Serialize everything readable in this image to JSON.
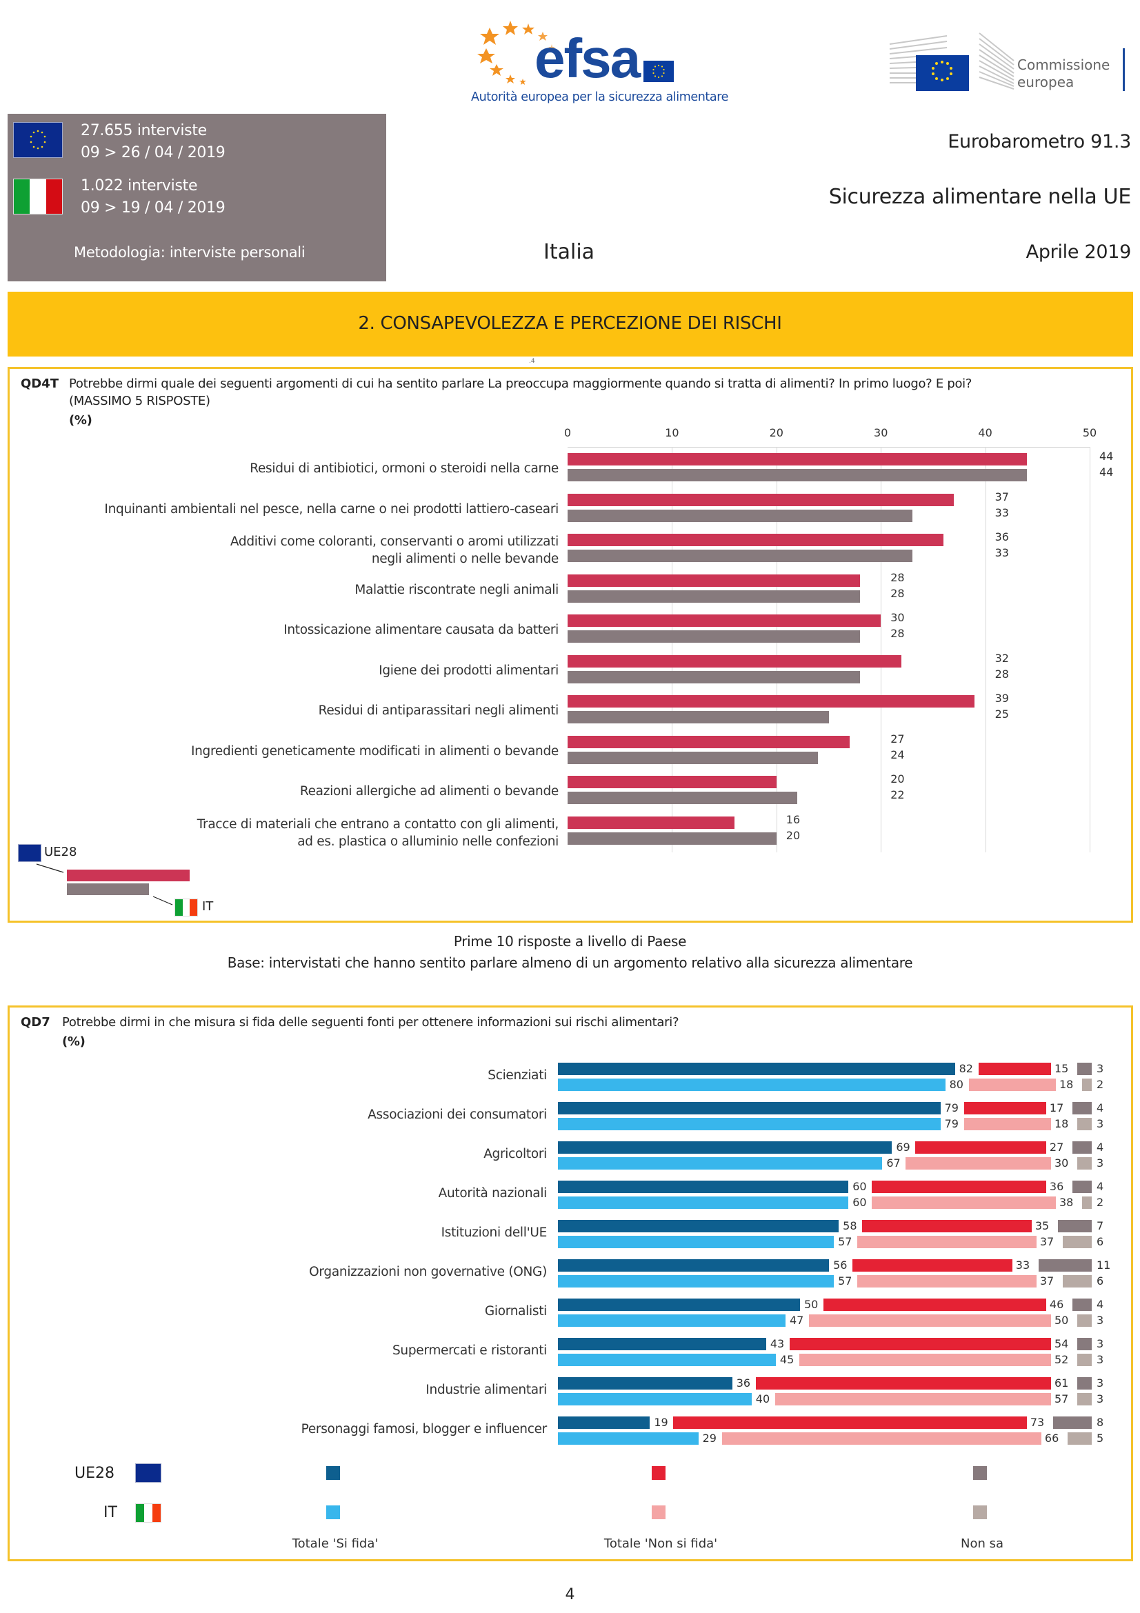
{
  "header": {
    "efsa_wordmark": "efsa",
    "efsa_tagline": "Autorità europea per la sicurezza alimentare",
    "ec_name_line1": "Commissione",
    "ec_name_line2": "europea",
    "eu_interviews": "27.655 interviste",
    "eu_dates": "09 > 26 / 04 / 2019",
    "it_interviews": "1.022 interviste",
    "it_dates": "09 > 19 / 04 / 2019",
    "methodology": "Metodologia: interviste personali",
    "survey": "Eurobarometro 91.3",
    "report_title": "Sicurezza alimentare nella UE",
    "country": "Italia",
    "date": "Aprile  2019"
  },
  "section": {
    "title": "2. CONSAPEVOLEZZA E PERCEZIONE DEI RISCHI",
    "marker": ".4"
  },
  "qd4t": {
    "code": "QD4T",
    "question_line1": "Potrebbe dirmi quale dei seguenti argomenti di cui ha sentito parlare La preoccupa maggiormente quando si tratta di alimenti? In primo luogo? E poi?",
    "question_line2": "(MASSIMO 5 RISPOSTE)",
    "unit": "(%)",
    "legend_eu": "UE28",
    "legend_it": "IT",
    "footnote1": "Prime 10 risposte a livello di Paese",
    "footnote2": "Base: intervistati che hanno sentito parlare almeno di un argomento relativo alla sicurezza alimentare"
  },
  "qd7": {
    "code": "QD7",
    "question": "Potrebbe dirmi in che misura si fida delle seguenti fonti per ottenere informazioni sui rischi alimentari?",
    "unit": "(%)",
    "legend_eu": "UE28",
    "legend_it": "IT",
    "legend_trust": "Totale 'Si fida'",
    "legend_distrust": "Totale 'Non si fida'",
    "legend_dk": "Non sa"
  },
  "page_number": "4",
  "colors": {
    "eu_red": "#cc3555",
    "it_grey": "#877a7d",
    "trust_eu": "#0e5f8f",
    "trust_it": "#38b6ec",
    "distrust_eu": "#e52234",
    "distrust_it": "#f4a4a4",
    "dk_eu": "#877a7d",
    "dk_it": "#b7aaa4",
    "frame": "#f5c22a",
    "band": "#fdc10f"
  },
  "chart_data": [
    {
      "type": "bar",
      "orientation": "horizontal",
      "title": "QD4T",
      "xlim": [
        0,
        50
      ],
      "ticks": [
        "0",
        "10",
        "20",
        "30",
        "40",
        "50"
      ],
      "grid": true,
      "categories": [
        [
          "Residui di antibiotici, ormoni o steroidi nella carne"
        ],
        [
          "Inquinanti ambientali nel pesce, nella carne o nei prodotti lattiero-caseari"
        ],
        [
          "Additivi come coloranti, conservanti o aromi utilizzati",
          "negli alimenti o nelle bevande"
        ],
        [
          "Malattie riscontrate negli animali"
        ],
        [
          "Intossicazione alimentare causata da batteri"
        ],
        [
          "Igiene dei prodotti alimentari"
        ],
        [
          "Residui di antiparassitari negli alimenti"
        ],
        [
          "Ingredienti geneticamente modificati in alimenti o bevande"
        ],
        [
          "Reazioni allergiche ad alimenti o bevande"
        ],
        [
          "Tracce di materiali che entrano a contatto con gli alimenti,",
          "ad es. plastica o alluminio nelle confezioni"
        ]
      ],
      "series": [
        {
          "name": "UE28",
          "values": [
            44,
            37,
            36,
            28,
            30,
            32,
            39,
            27,
            20,
            16
          ]
        },
        {
          "name": "IT",
          "values": [
            44,
            33,
            33,
            28,
            28,
            28,
            25,
            24,
            22,
            20
          ]
        }
      ]
    },
    {
      "type": "bar",
      "orientation": "horizontal-stacked",
      "title": "QD7",
      "categories": [
        "Scienziati",
        "Associazioni dei consumatori",
        "Agricoltori",
        "Autorità nazionali",
        "Istituzioni dell'UE",
        "Organizzazioni non governative (ONG)",
        "Giornalisti",
        "Supermercati e ristoranti",
        "Industrie alimentari",
        "Personaggi famosi, blogger e influencer"
      ],
      "series": [
        {
          "name": "UE28 Totale 'Si fida'",
          "values": [
            82,
            79,
            69,
            60,
            58,
            56,
            50,
            43,
            36,
            19
          ]
        },
        {
          "name": "UE28 Totale 'Non si fida'",
          "values": [
            15,
            17,
            27,
            36,
            35,
            33,
            46,
            54,
            61,
            73
          ]
        },
        {
          "name": "UE28 Non sa",
          "values": [
            3,
            4,
            4,
            4,
            7,
            11,
            4,
            3,
            3,
            8
          ]
        },
        {
          "name": "IT Totale 'Si fida'",
          "values": [
            80,
            79,
            67,
            60,
            57,
            57,
            47,
            45,
            40,
            29
          ]
        },
        {
          "name": "IT Totale 'Non si fida'",
          "values": [
            18,
            18,
            30,
            38,
            37,
            37,
            50,
            52,
            57,
            66
          ]
        },
        {
          "name": "IT Non sa",
          "values": [
            2,
            3,
            3,
            2,
            6,
            6,
            3,
            3,
            3,
            5
          ]
        }
      ]
    }
  ]
}
